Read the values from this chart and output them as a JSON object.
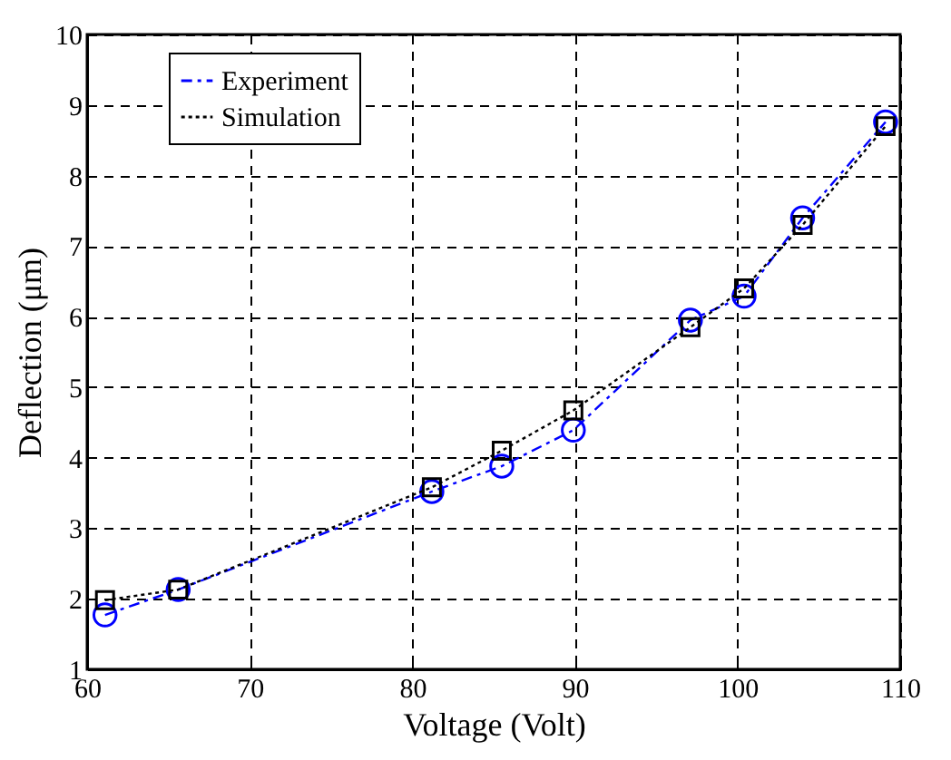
{
  "chart_data": {
    "type": "line",
    "xlabel": "Voltage (Volt)",
    "ylabel": "Deflection (μm)",
    "xlim": [
      60,
      110
    ],
    "xticks": [
      60,
      70,
      80,
      90,
      100,
      110
    ],
    "ylim": [
      1,
      10
    ],
    "yticks": [
      1,
      2,
      3,
      4,
      5,
      6,
      7,
      8,
      9,
      10
    ],
    "grid": true,
    "legend": "top left",
    "series": [
      {
        "name": "Experiment",
        "color": "#0000ff",
        "marker": "circle",
        "line_style": "dashed",
        "x": [
          61.1,
          65.6,
          81.2,
          85.5,
          89.9,
          97.1,
          100.4,
          104.0,
          109.1
        ],
        "values": [
          1.77,
          2.13,
          3.52,
          3.88,
          4.39,
          5.95,
          6.29,
          7.4,
          8.76
        ]
      },
      {
        "name": "Simulation",
        "color": "#000000",
        "marker": "square",
        "line_style": "dotted",
        "x": [
          61.1,
          65.6,
          81.2,
          85.5,
          89.9,
          97.1,
          100.4,
          104.0,
          109.1
        ],
        "values": [
          1.98,
          2.13,
          3.58,
          4.1,
          4.67,
          5.85,
          6.4,
          7.3,
          8.7
        ]
      }
    ]
  }
}
